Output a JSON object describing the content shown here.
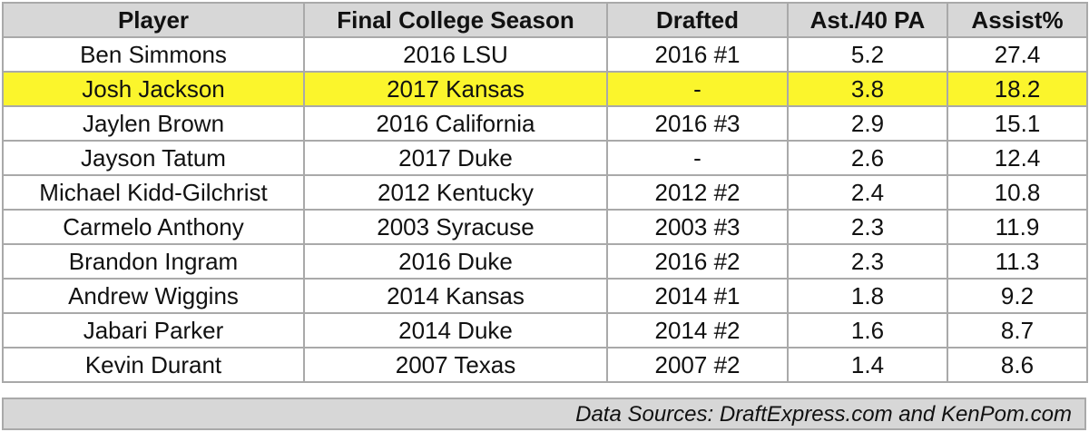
{
  "chart_data": {
    "type": "table",
    "columns": [
      "Player",
      "Final College Season",
      "Drafted",
      "Ast./40 PA",
      "Assist%"
    ],
    "rows": [
      [
        "Ben Simmons",
        "2016 LSU",
        "2016 #1",
        "5.2",
        "27.4"
      ],
      [
        "Josh Jackson",
        "2017 Kansas",
        "-",
        "3.8",
        "18.2"
      ],
      [
        "Jaylen Brown",
        "2016 California",
        "2016 #3",
        "2.9",
        "15.1"
      ],
      [
        "Jayson Tatum",
        "2017 Duke",
        "-",
        "2.6",
        "12.4"
      ],
      [
        "Michael Kidd-Gilchrist",
        "2012 Kentucky",
        "2012 #2",
        "2.4",
        "10.8"
      ],
      [
        "Carmelo Anthony",
        "2003 Syracuse",
        "2003 #3",
        "2.3",
        "11.9"
      ],
      [
        "Brandon Ingram",
        "2016 Duke",
        "2016 #2",
        "2.3",
        "11.3"
      ],
      [
        "Andrew Wiggins",
        "2014 Kansas",
        "2014 #1",
        "1.8",
        "9.2"
      ],
      [
        "Jabari Parker",
        "2014 Duke",
        "2014 #2",
        "1.6",
        "8.7"
      ],
      [
        "Kevin Durant",
        "2007 Texas",
        "2007 #2",
        "1.4",
        "8.6"
      ]
    ],
    "highlighted_row": "Josh Jackson",
    "footer": "Data Sources: DraftExpress.com and KenPom.com"
  },
  "colors": {
    "header_bg": "#d7d7d7",
    "highlight": "#fbf52c",
    "border": "#a9a9a9"
  }
}
